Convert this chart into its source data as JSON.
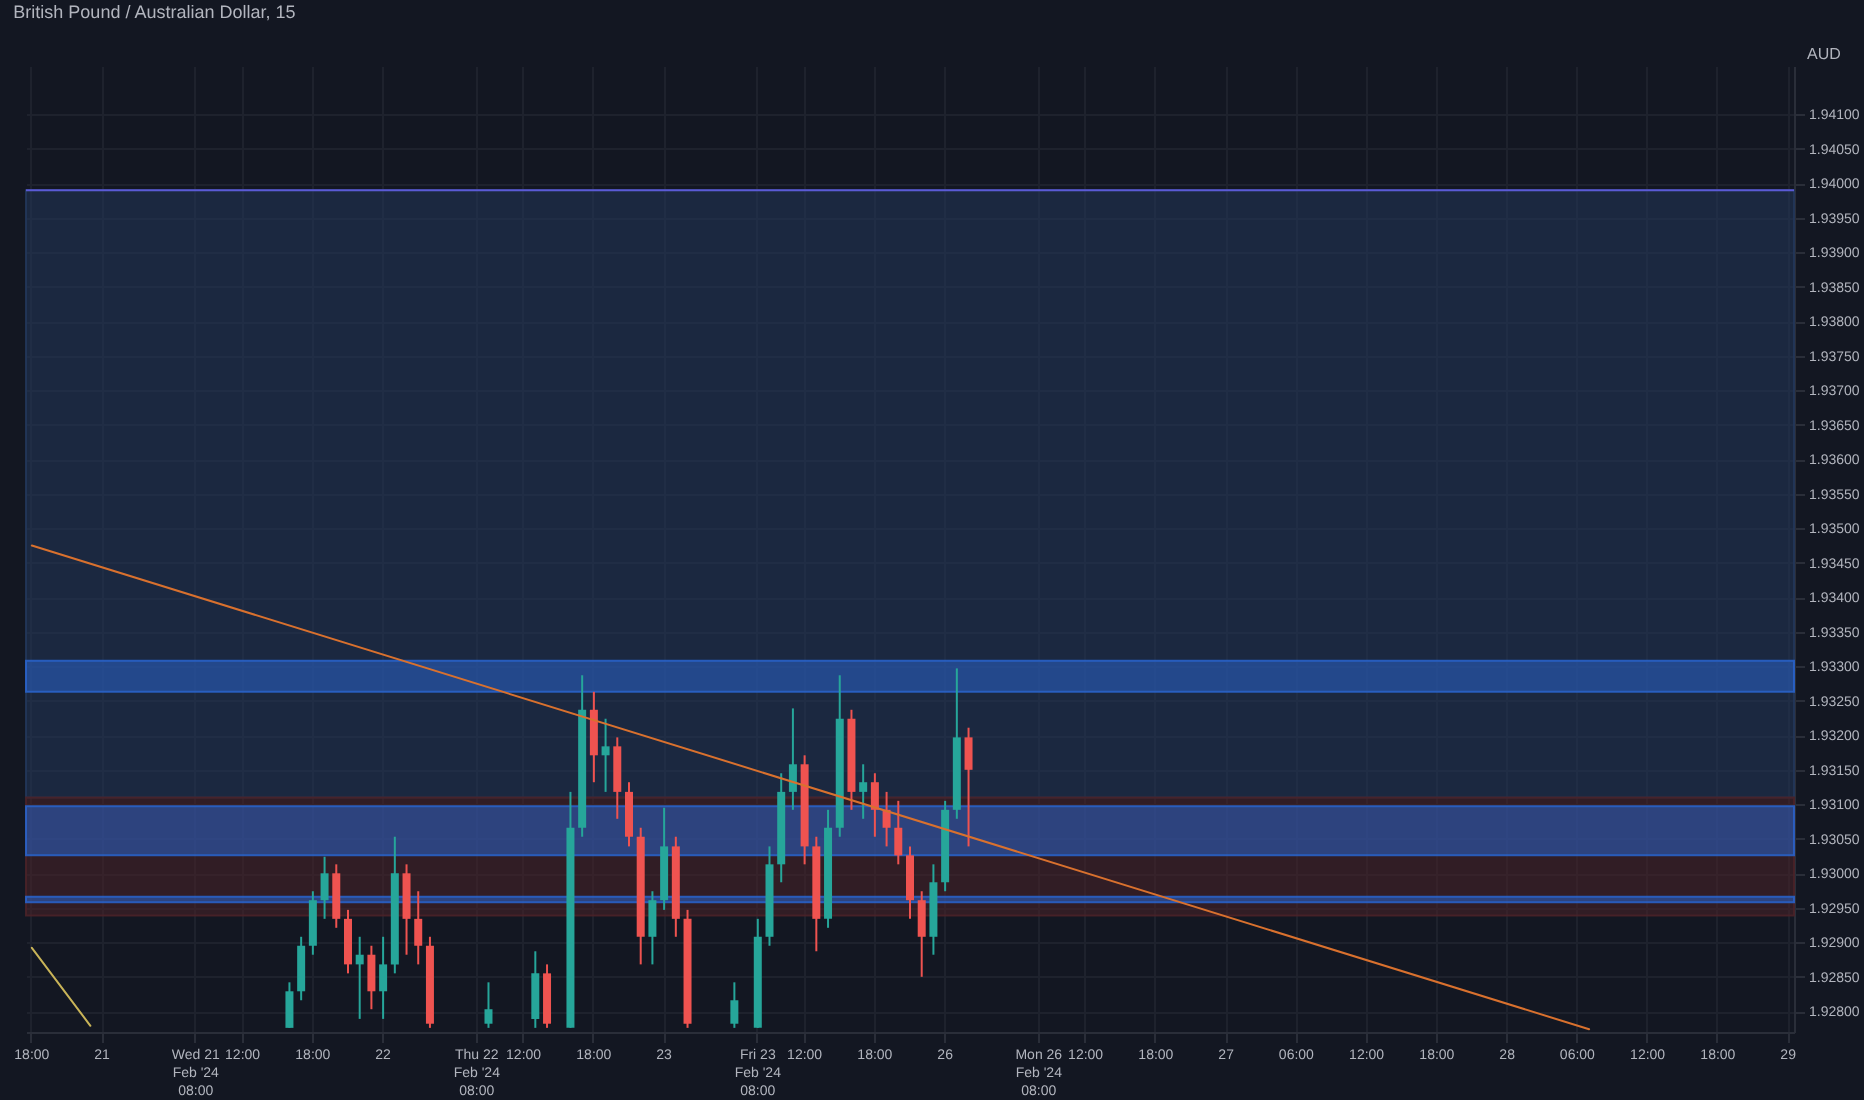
{
  "chart_data": {
    "type": "candlestick",
    "title": "British Pound / Australian Dollar, 15",
    "ylabel": "AUD",
    "categories": [
      "18:00",
      null,
      null,
      null,
      null,
      null,
      "21",
      null,
      null,
      null,
      null,
      null,
      null,
      null,
      "Wed 21 Feb '24 08:00",
      null,
      null,
      null,
      "12:00",
      null,
      null,
      null,
      null,
      null,
      "18:00",
      null,
      null,
      null,
      null,
      null,
      "22",
      null,
      null,
      null,
      null,
      null,
      null,
      null,
      "Thu 22 Feb '24 08:00",
      null,
      null,
      null,
      "12:00",
      null,
      null,
      null,
      null,
      null,
      "18:00",
      null,
      null,
      null,
      null,
      null,
      "23",
      null,
      null,
      null,
      null,
      null,
      null,
      null,
      "Fri 23 Feb '24 08:00",
      null,
      null,
      null,
      "12:00",
      null,
      null,
      null,
      null,
      null,
      "18:00",
      null,
      null,
      null,
      null,
      null,
      "26",
      null,
      null,
      null,
      null,
      null,
      null,
      null,
      "Mon 26 Feb '24 08:00",
      null,
      null,
      null,
      "12:00",
      null,
      null,
      null,
      null,
      null,
      "18:00",
      null,
      null,
      null,
      null,
      null,
      "27",
      null,
      null,
      null,
      null,
      null,
      "06:00",
      null,
      null,
      null,
      null,
      null,
      "12:00",
      null,
      null,
      null,
      null,
      null,
      "18:00",
      null,
      null,
      null,
      null,
      null,
      "28",
      null,
      null,
      null,
      null,
      null,
      "06:00",
      null,
      null,
      null,
      null,
      null,
      "12:00",
      null,
      null,
      null,
      null,
      null,
      "18:00",
      null,
      null,
      null,
      null,
      null,
      "29"
    ],
    "ohlc": [
      null,
      null,
      null,
      null,
      null,
      null,
      null,
      null,
      null,
      null,
      null,
      null,
      null,
      null,
      null,
      null,
      null,
      null,
      null,
      null,
      null,
      null,
      [
        1.92776,
        1.92842,
        1.92776,
        1.92829
      ],
      [
        1.92829,
        1.92908,
        1.92816,
        1.92895
      ],
      [
        1.92895,
        1.92974,
        1.92882,
        1.92961
      ],
      [
        1.92961,
        1.93024,
        1.92934,
        1.93
      ],
      [
        1.93,
        1.93013,
        1.92921,
        1.92934
      ],
      [
        1.92934,
        1.92947,
        1.92855,
        1.92868
      ],
      [
        1.92868,
        1.92908,
        1.92789,
        1.92882
      ],
      [
        1.92882,
        1.92895,
        1.92803,
        1.92829
      ],
      [
        1.92829,
        1.92908,
        1.92789,
        1.92868
      ],
      [
        1.92868,
        1.93053,
        1.92855,
        1.93
      ],
      [
        1.93,
        1.93013,
        1.92882,
        1.92934
      ],
      [
        1.92934,
        1.92974,
        1.92868,
        1.92895
      ],
      [
        1.92895,
        1.92908,
        1.92776,
        1.92782
      ],
      null,
      null,
      null,
      null,
      [
        1.92782,
        1.92842,
        1.92776,
        1.92803
      ],
      null,
      null,
      null,
      [
        1.92789,
        1.92887,
        1.92776,
        1.92855
      ],
      [
        1.92855,
        1.92868,
        1.92776,
        1.92782
      ],
      null,
      [
        1.92776,
        1.93118,
        1.92776,
        1.93066
      ],
      [
        1.93066,
        1.93287,
        1.93053,
        1.93237
      ],
      [
        1.93237,
        1.93263,
        1.93132,
        1.93171
      ],
      [
        1.93171,
        1.93224,
        1.93118,
        1.93184
      ],
      [
        1.93184,
        1.93197,
        1.93079,
        1.93118
      ],
      [
        1.93118,
        1.93132,
        1.93039,
        1.93053
      ],
      [
        1.93053,
        1.93066,
        1.92868,
        1.92908
      ],
      [
        1.92908,
        1.92974,
        1.92868,
        1.92961
      ],
      [
        1.92961,
        1.93095,
        1.92947,
        1.93039
      ],
      [
        1.93039,
        1.93053,
        1.92908,
        1.92934
      ],
      [
        1.92934,
        1.92947,
        1.92776,
        1.92782
      ],
      null,
      null,
      null,
      [
        1.92782,
        1.92842,
        1.92776,
        1.92816
      ],
      null,
      [
        1.92776,
        1.92934,
        1.92776,
        1.92908
      ],
      [
        1.92908,
        1.93039,
        1.92895,
        1.93013
      ],
      [
        1.93013,
        1.93145,
        1.92987,
        1.93118
      ],
      [
        1.93118,
        1.93239,
        1.93092,
        1.93158
      ],
      [
        1.93158,
        1.93171,
        1.93013,
        1.93039
      ],
      [
        1.93039,
        1.93053,
        1.92887,
        1.92934
      ],
      [
        1.92934,
        1.93092,
        1.92921,
        1.93066
      ],
      [
        1.93066,
        1.93287,
        1.93053,
        1.93224
      ],
      [
        1.93224,
        1.93237,
        1.93092,
        1.93118
      ],
      [
        1.93118,
        1.93158,
        1.93079,
        1.93132
      ],
      [
        1.93132,
        1.93145,
        1.93053,
        1.93092
      ],
      [
        1.93092,
        1.93118,
        1.93039,
        1.93066
      ],
      [
        1.93066,
        1.93105,
        1.93013,
        1.93026
      ],
      [
        1.93026,
        1.93039,
        1.92934,
        1.92961
      ],
      [
        1.92961,
        1.92974,
        1.9285,
        1.92908
      ],
      [
        1.92908,
        1.93013,
        1.92882,
        1.92987
      ],
      [
        1.92987,
        1.93105,
        1.92974,
        1.93092
      ],
      [
        1.93092,
        1.93297,
        1.93079,
        1.93197
      ],
      [
        1.93197,
        1.93211,
        1.93039,
        1.9315
      ],
      null,
      null,
      null,
      null,
      null,
      null,
      null,
      null,
      null,
      null,
      null,
      null,
      null,
      null,
      null,
      null,
      null,
      null,
      null,
      null,
      null,
      null,
      null,
      null,
      null,
      null,
      null,
      null,
      null,
      null,
      null,
      null,
      null,
      null,
      null,
      null,
      null,
      null,
      null,
      null,
      null,
      null,
      null,
      null,
      null,
      null,
      null,
      null,
      null,
      null,
      null,
      null,
      null,
      null,
      null,
      null,
      null,
      null,
      null,
      null,
      null,
      null,
      null,
      null,
      null,
      null,
      null,
      null,
      null,
      null
    ],
    "series": [
      {
        "type": "line",
        "color": "#d9712e",
        "values": [
          1.93475,
          null,
          null,
          null,
          null,
          null,
          null,
          null,
          null,
          null,
          null,
          null,
          null,
          null,
          null,
          null,
          null,
          null,
          null,
          null,
          null,
          null,
          null,
          null,
          null,
          null,
          null,
          null,
          null,
          null,
          null,
          null,
          null,
          null,
          null,
          null,
          null,
          null,
          null,
          null,
          null,
          null,
          null,
          null,
          null,
          null,
          null,
          null,
          null,
          null,
          null,
          null,
          null,
          null,
          null,
          null,
          null,
          null,
          null,
          null,
          null,
          null,
          null,
          null,
          null,
          null,
          null,
          null,
          null,
          null,
          null,
          null,
          null,
          null,
          null,
          null,
          null,
          null,
          null,
          null,
          null,
          null,
          null,
          null,
          null,
          null,
          null,
          null,
          null,
          null,
          null,
          null,
          null,
          null,
          null,
          null,
          null,
          null,
          null,
          null,
          null,
          null,
          null,
          null,
          null,
          null,
          null,
          null,
          null,
          null,
          null,
          null,
          null,
          null,
          null,
          null,
          null,
          null,
          null,
          null,
          null,
          null,
          null,
          null,
          null,
          null,
          null,
          null,
          null,
          null,
          null,
          null,
          null,
          1.92774,
          null,
          null,
          null,
          null,
          null,
          null,
          null,
          null,
          null,
          null,
          null,
          null,
          null,
          null,
          null,
          null,
          null
        ]
      },
      {
        "type": "line",
        "color": "#c9b458",
        "values": [
          1.92892,
          null,
          null,
          null,
          null,
          1.92779,
          null,
          null,
          null,
          null,
          null,
          null,
          null,
          null,
          null,
          null,
          null,
          null,
          null,
          null,
          null,
          null,
          null,
          null,
          null,
          null,
          null,
          null,
          null,
          null,
          null,
          null,
          null,
          null,
          null,
          null,
          null,
          null,
          null,
          null,
          null,
          null,
          null,
          null,
          null,
          null,
          null,
          null,
          null,
          null,
          null,
          null,
          null,
          null,
          null,
          null,
          null,
          null,
          null,
          null,
          null,
          null,
          null,
          null,
          null,
          null,
          null,
          null,
          null,
          null,
          null,
          null,
          null,
          null,
          null,
          null,
          null,
          null,
          null,
          null,
          null,
          null,
          null,
          null,
          null,
          null,
          null,
          null,
          null,
          null,
          null,
          null,
          null,
          null,
          null,
          null,
          null,
          null,
          null,
          null,
          null,
          null,
          null,
          null,
          null,
          null,
          null,
          null,
          null,
          null,
          null,
          null,
          null,
          null,
          null,
          null,
          null,
          null,
          null,
          null,
          null,
          null,
          null,
          null,
          null,
          null,
          null,
          null,
          null,
          null,
          null,
          null,
          null,
          null,
          null,
          null,
          null,
          null,
          null,
          null,
          null,
          null,
          null,
          null,
          null,
          null,
          null,
          null,
          null,
          null,
          null
        ]
      }
    ],
    "bands": [
      {
        "axis": "y",
        "from": 1.9311,
        "to": 1.9399,
        "color": "#22365a"
      },
      {
        "axis": "y",
        "from": 1.92939,
        "to": 1.9311,
        "color": "#4a2228"
      },
      {
        "axis": "y",
        "from": 1.93263,
        "to": 1.93308,
        "color": "#2962c8"
      },
      {
        "axis": "y",
        "from": 1.92958,
        "to": 1.92966,
        "color": "#2962c8"
      },
      {
        "axis": "y",
        "from": 1.93026,
        "to": 1.93097,
        "color": "#2962c8"
      }
    ],
    "ref_lines": [
      {
        "axis": "y",
        "value": 1.9399,
        "color": "#5b5bd6"
      }
    ],
    "ylim": [
      1.9277,
      1.9417
    ],
    "yticks": [
      {
        "value": 1.928,
        "label": "1.92800"
      },
      {
        "value": 1.9285,
        "label": "1.92850"
      },
      {
        "value": 1.929,
        "label": "1.92900"
      },
      {
        "value": 1.9295,
        "label": "1.92950"
      },
      {
        "value": 1.93,
        "label": "1.93000"
      },
      {
        "value": 1.9305,
        "label": "1.93050"
      },
      {
        "value": 1.931,
        "label": "1.93100"
      },
      {
        "value": 1.9315,
        "label": "1.93150"
      },
      {
        "value": 1.932,
        "label": "1.93200"
      },
      {
        "value": 1.9325,
        "label": "1.93250"
      },
      {
        "value": 1.933,
        "label": "1.93300"
      },
      {
        "value": 1.9335,
        "label": "1.93350"
      },
      {
        "value": 1.934,
        "label": "1.93400"
      },
      {
        "value": 1.9345,
        "label": "1.93450"
      },
      {
        "value": 1.935,
        "label": "1.93500"
      },
      {
        "value": 1.9355,
        "label": "1.93550"
      },
      {
        "value": 1.936,
        "label": "1.93600"
      },
      {
        "value": 1.9365,
        "label": "1.93650"
      },
      {
        "value": 1.937,
        "label": "1.93700"
      },
      {
        "value": 1.9375,
        "label": "1.93750"
      },
      {
        "value": 1.938,
        "label": "1.93800"
      },
      {
        "value": 1.9385,
        "label": "1.93850"
      },
      {
        "value": 1.939,
        "label": "1.93900"
      },
      {
        "value": 1.9395,
        "label": "1.93950"
      },
      {
        "value": 1.94,
        "label": "1.94000"
      },
      {
        "value": 1.9405,
        "label": "1.94050"
      },
      {
        "value": 1.941,
        "label": "1.94100"
      }
    ],
    "grid": true
  }
}
